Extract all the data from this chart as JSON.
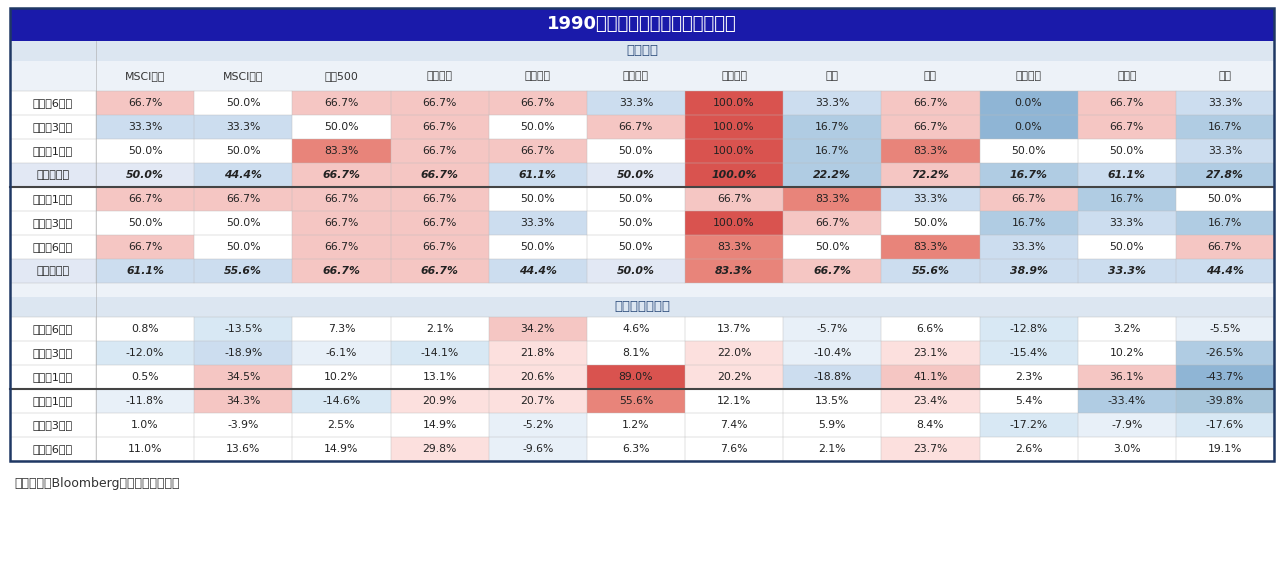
{
  "title": "1990年以来降息周期大类资产表现",
  "section1_label": "上涨频率",
  "section2_label": "平均年化涨跌幅",
  "footer": "资料来源：Bloomberg，中金公司研究部",
  "columns": [
    "MSCI发达",
    "MSCI新兴",
    "标普500",
    "纳斯达克",
    "上证指数",
    "恒生指数",
    "美国国债",
    "美元",
    "黄金",
    "工业金属",
    "农产品",
    "原油"
  ],
  "row_labels_section1": [
    "降息前6个月",
    "降息前3个月",
    "降息前1个月",
    "降息前平均",
    "降息后1个月",
    "降息后3个月",
    "降息后6个月",
    "降息后平均"
  ],
  "row_labels_section2": [
    "降息前6个月",
    "降息前3个月",
    "降息前1个月",
    "降息后1个月",
    "降息后3个月",
    "降息后6个月"
  ],
  "avg_rows_section1": [
    3,
    7
  ],
  "section1_data": [
    [
      66.7,
      50.0,
      66.7,
      66.7,
      66.7,
      33.3,
      100.0,
      33.3,
      66.7,
      0.0,
      66.7,
      33.3
    ],
    [
      33.3,
      33.3,
      50.0,
      66.7,
      50.0,
      66.7,
      100.0,
      16.7,
      66.7,
      0.0,
      66.7,
      16.7
    ],
    [
      50.0,
      50.0,
      83.3,
      66.7,
      66.7,
      50.0,
      100.0,
      16.7,
      83.3,
      50.0,
      50.0,
      33.3
    ],
    [
      50.0,
      44.4,
      66.7,
      66.7,
      61.1,
      50.0,
      100.0,
      22.2,
      72.2,
      16.7,
      61.1,
      27.8
    ],
    [
      66.7,
      66.7,
      66.7,
      66.7,
      50.0,
      50.0,
      66.7,
      83.3,
      33.3,
      66.7,
      16.7,
      50.0
    ],
    [
      50.0,
      50.0,
      66.7,
      66.7,
      33.3,
      50.0,
      100.0,
      66.7,
      50.0,
      16.7,
      33.3,
      16.7
    ],
    [
      66.7,
      50.0,
      66.7,
      66.7,
      50.0,
      50.0,
      83.3,
      50.0,
      83.3,
      33.3,
      50.0,
      66.7
    ],
    [
      61.1,
      55.6,
      66.7,
      66.7,
      44.4,
      50.0,
      83.3,
      66.7,
      55.6,
      38.9,
      33.3,
      44.4
    ]
  ],
  "section2_data": [
    [
      0.8,
      -13.5,
      7.3,
      2.1,
      34.2,
      4.6,
      13.7,
      -5.7,
      6.6,
      -12.8,
      3.2,
      -5.5
    ],
    [
      -12.0,
      -18.9,
      -6.1,
      -14.1,
      21.8,
      8.1,
      22.0,
      -10.4,
      23.1,
      -15.4,
      10.2,
      -26.5
    ],
    [
      0.5,
      34.5,
      10.2,
      13.1,
      20.6,
      89.0,
      20.2,
      -18.8,
      41.1,
      2.3,
      36.1,
      -43.7
    ],
    [
      -11.8,
      34.3,
      -14.6,
      20.9,
      20.7,
      55.6,
      12.1,
      13.5,
      23.4,
      5.4,
      -33.4,
      -39.8
    ],
    [
      1.0,
      -3.9,
      2.5,
      14.9,
      -5.2,
      1.2,
      7.4,
      5.9,
      8.4,
      -17.2,
      -7.9,
      -17.6
    ],
    [
      11.0,
      13.6,
      14.9,
      29.8,
      -9.6,
      6.3,
      7.6,
      2.1,
      23.7,
      2.6,
      3.0,
      19.1
    ]
  ],
  "title_bg": "#1a1aaa",
  "title_color": "#ffffff",
  "section_header_bg": "#dce6f1",
  "section_header_color": "#1f3864",
  "avg_row_bg": "#e2e8f4",
  "default_row_bg": "#ffffff",
  "outer_border_color": "#1f3864",
  "outer_bg": "#f0f4fa"
}
